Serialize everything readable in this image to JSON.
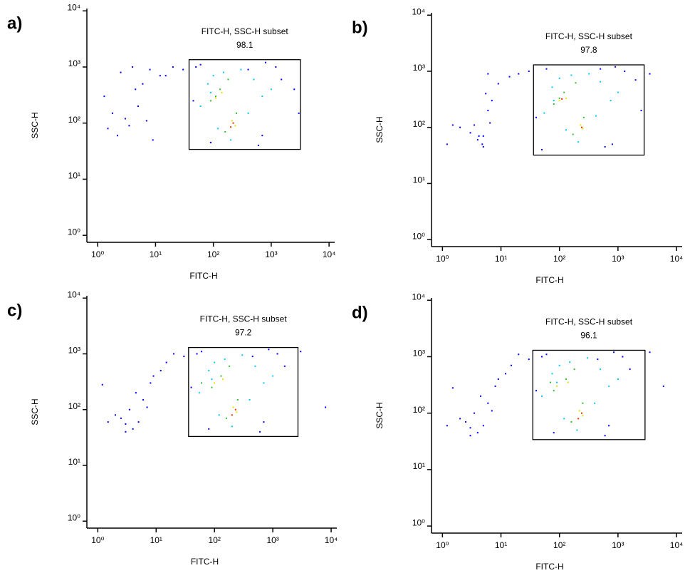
{
  "chart_data": [
    {
      "type": "scatter",
      "panel_label": "a)",
      "title": "FITC-H, SSC-H subset",
      "gate_value": 98.1,
      "xlabel": "FITC-H",
      "ylabel": "SSC-H",
      "log_x": true,
      "log_y": true,
      "xlim": [
        0.65,
        12500
      ],
      "ylim": [
        0.75,
        11000
      ],
      "xticks": [
        {
          "value": 1,
          "label": "10⁰"
        },
        {
          "value": 10,
          "label": "10¹"
        },
        {
          "value": 100,
          "label": "10²"
        },
        {
          "value": 1000,
          "label": "10³"
        },
        {
          "value": 10000,
          "label": "10⁴"
        }
      ],
      "yticks": [
        {
          "value": 1,
          "label": "10⁰"
        },
        {
          "value": 10,
          "label": "10¹"
        },
        {
          "value": 100,
          "label": "10²"
        },
        {
          "value": 1000,
          "label": "10³"
        },
        {
          "value": 10000,
          "label": "10⁴"
        }
      ],
      "gate": {
        "x": [
          38,
          3200
        ],
        "y": [
          34,
          1350
        ]
      },
      "series": [
        {
          "color": "#0000ff",
          "x": [
            1.3,
            1.8,
            2.5,
            3,
            4,
            5,
            2.2,
            6,
            8,
            3.5,
            12,
            20,
            30,
            1.5,
            4.5,
            7,
            9,
            15,
            50,
            60,
            400,
            800,
            1500,
            2500,
            700,
            90,
            45,
            3000,
            1200,
            600
          ],
          "values": [
            300,
            150,
            800,
            120,
            1000,
            200,
            60,
            500,
            900,
            90,
            700,
            1000,
            900,
            80,
            400,
            110,
            50,
            700,
            1000,
            1100,
            900,
            1200,
            600,
            400,
            60,
            45,
            250,
            150,
            1000,
            40
          ]
        },
        {
          "color": "#00c8ff",
          "x": [
            60,
            80,
            100,
            150,
            300,
            500,
            700,
            1000,
            200,
            120,
            90,
            400
          ],
          "values": [
            200,
            500,
            700,
            800,
            900,
            600,
            300,
            400,
            50,
            80,
            350,
            150
          ]
        },
        {
          "color": "#30c030",
          "x": [
            90,
            130,
            180,
            250,
            160,
            110
          ],
          "values": [
            250,
            400,
            600,
            150,
            70,
            300
          ]
        },
        {
          "color": "#e8e000",
          "x": [
            110,
            210,
            240,
            140
          ],
          "values": [
            280,
            110,
            90,
            350
          ]
        },
        {
          "color": "#e03000",
          "x": [
            220,
            200
          ],
          "values": [
            100,
            85
          ]
        }
      ]
    },
    {
      "type": "scatter",
      "panel_label": "b)",
      "title": "FITC-H, SSC-H subset",
      "gate_value": 97.8,
      "xlabel": "FITC-H",
      "ylabel": "SSC-H",
      "log_x": true,
      "log_y": true,
      "xlim": [
        0.65,
        12500
      ],
      "ylim": [
        0.75,
        11000
      ],
      "xticks": [
        {
          "value": 1,
          "label": "10⁰"
        },
        {
          "value": 10,
          "label": "10¹"
        },
        {
          "value": 100,
          "label": "10²"
        },
        {
          "value": 1000,
          "label": "10³"
        },
        {
          "value": 10000,
          "label": "10⁴"
        }
      ],
      "yticks": [
        {
          "value": 1,
          "label": "10⁰"
        },
        {
          "value": 10,
          "label": "10¹"
        },
        {
          "value": 100,
          "label": "10²"
        },
        {
          "value": 1000,
          "label": "10³"
        },
        {
          "value": 10000,
          "label": "10⁴"
        }
      ],
      "gate": {
        "x": [
          36,
          2800
        ],
        "y": [
          32,
          1300
        ]
      },
      "series": [
        {
          "color": "#0000ff",
          "x": [
            1.2,
            2,
            3,
            4,
            5,
            6,
            5.5,
            4.8,
            6.5,
            7,
            5,
            9,
            20,
            30,
            1.5,
            3.5,
            4.2,
            6,
            14,
            60,
            500,
            900,
            2000,
            3500,
            800,
            50,
            40,
            2500,
            1300,
            600
          ],
          "values": [
            50,
            100,
            80,
            60,
            45,
            200,
            400,
            50,
            120,
            300,
            70,
            600,
            900,
            1000,
            110,
            110,
            70,
            900,
            800,
            1100,
            1100,
            1200,
            700,
            900,
            50,
            40,
            150,
            200,
            1000,
            45
          ]
        },
        {
          "color": "#00c8ff",
          "x": [
            55,
            75,
            100,
            160,
            320,
            500,
            750,
            1000,
            210,
            130,
            80,
            420
          ],
          "values": [
            180,
            520,
            750,
            850,
            900,
            650,
            300,
            420,
            55,
            90,
            300,
            160
          ]
        },
        {
          "color": "#30c030",
          "x": [
            80,
            120,
            190,
            260,
            170,
            100
          ],
          "values": [
            260,
            420,
            620,
            150,
            75,
            330
          ]
        },
        {
          "color": "#e8e000",
          "x": [
            100,
            230,
            250,
            130
          ],
          "values": [
            300,
            110,
            95,
            330
          ]
        },
        {
          "color": "#e03000",
          "x": [
            240,
            110
          ],
          "values": [
            100,
            320
          ]
        }
      ]
    },
    {
      "type": "scatter",
      "panel_label": "c)",
      "title": "FITC-H, SSC-H subset",
      "gate_value": 97.2,
      "xlabel": "FITC-H",
      "ylabel": "SSC-H",
      "log_x": true,
      "log_y": true,
      "xlim": [
        0.65,
        12500
      ],
      "ylim": [
        0.75,
        11000
      ],
      "xticks": [
        {
          "value": 1,
          "label": "10⁰"
        },
        {
          "value": 10,
          "label": "10¹"
        },
        {
          "value": 100,
          "label": "10²"
        },
        {
          "value": 1000,
          "label": "10³"
        },
        {
          "value": 10000,
          "label": "10⁴"
        }
      ],
      "yticks": [
        {
          "value": 1,
          "label": "10⁰"
        },
        {
          "value": 10,
          "label": "10¹"
        },
        {
          "value": 100,
          "label": "10²"
        },
        {
          "value": 1000,
          "label": "10³"
        },
        {
          "value": 10000,
          "label": "10⁴"
        }
      ],
      "gate": {
        "x": [
          36,
          2700
        ],
        "y": [
          33,
          1300
        ]
      },
      "series": [
        {
          "color": "#0000ff",
          "x": [
            1.5,
            2,
            3,
            3.5,
            4,
            5,
            4.5,
            6,
            8,
            3,
            12,
            20,
            30,
            1.2,
            2.5,
            7,
            9,
            15,
            50,
            60,
            450,
            850,
            1600,
            3000,
            700,
            80,
            40,
            8000,
            1200,
            600
          ],
          "values": [
            60,
            80,
            55,
            100,
            45,
            60,
            200,
            150,
            300,
            40,
            500,
            1000,
            900,
            280,
            70,
            110,
            400,
            700,
            1000,
            1100,
            900,
            1200,
            600,
            1100,
            60,
            45,
            250,
            110,
            1000,
            40
          ]
        },
        {
          "color": "#00c8ff",
          "x": [
            55,
            80,
            100,
            150,
            300,
            500,
            700,
            1000,
            200,
            120,
            90,
            400
          ],
          "values": [
            200,
            500,
            700,
            800,
            950,
            600,
            300,
            400,
            50,
            80,
            350,
            150
          ]
        },
        {
          "color": "#30c030",
          "x": [
            90,
            130,
            180,
            250,
            160,
            60
          ],
          "values": [
            250,
            400,
            600,
            150,
            70,
            300
          ]
        },
        {
          "color": "#e8e000",
          "x": [
            100,
            210,
            240,
            140
          ],
          "values": [
            300,
            110,
            90,
            350
          ]
        },
        {
          "color": "#e03000",
          "x": [
            230,
            200
          ],
          "values": [
            100,
            80
          ]
        }
      ]
    },
    {
      "type": "scatter",
      "panel_label": "d)",
      "title": "FITC-H, SSC-H subset",
      "gate_value": 96.1,
      "xlabel": "FITC-H",
      "ylabel": "SSC-H",
      "log_x": true,
      "log_y": true,
      "xlim": [
        0.65,
        12500
      ],
      "ylim": [
        0.75,
        11000
      ],
      "xticks": [
        {
          "value": 1,
          "label": "10⁰"
        },
        {
          "value": 10,
          "label": "10¹"
        },
        {
          "value": 100,
          "label": "10²"
        },
        {
          "value": 1000,
          "label": "10³"
        },
        {
          "value": 10000,
          "label": "10⁴"
        }
      ],
      "yticks": [
        {
          "value": 1,
          "label": "10⁰"
        },
        {
          "value": 10,
          "label": "10¹"
        },
        {
          "value": 100,
          "label": "10²"
        },
        {
          "value": 1000,
          "label": "10³"
        },
        {
          "value": 10000,
          "label": "10⁴"
        }
      ],
      "gate": {
        "x": [
          35,
          2900
        ],
        "y": [
          34,
          1300
        ]
      },
      "series": [
        {
          "color": "#0000ff",
          "x": [
            1.2,
            2,
            3,
            3.5,
            4,
            5,
            4.5,
            6,
            8,
            3,
            12,
            20,
            30,
            1.5,
            2.5,
            7,
            9,
            15,
            50,
            60,
            450,
            850,
            1600,
            3500,
            700,
            80,
            40,
            6000,
            1200,
            600
          ],
          "values": [
            60,
            80,
            55,
            100,
            45,
            60,
            200,
            150,
            300,
            40,
            500,
            1100,
            900,
            280,
            70,
            110,
            400,
            700,
            1000,
            1100,
            900,
            1200,
            600,
            1200,
            60,
            45,
            250,
            300,
            1000,
            40
          ]
        },
        {
          "color": "#00c8ff",
          "x": [
            50,
            75,
            100,
            150,
            300,
            500,
            700,
            1000,
            200,
            120,
            90,
            400
          ],
          "values": [
            200,
            500,
            700,
            800,
            950,
            600,
            300,
            400,
            50,
            80,
            350,
            150
          ]
        },
        {
          "color": "#30c030",
          "x": [
            80,
            130,
            180,
            250,
            160,
            70
          ],
          "values": [
            250,
            400,
            600,
            150,
            70,
            350
          ]
        },
        {
          "color": "#e8e000",
          "x": [
            90,
            220,
            250,
            140
          ],
          "values": [
            300,
            110,
            90,
            350
          ]
        },
        {
          "color": "#e03000",
          "x": [
            240,
            210
          ],
          "values": [
            100,
            80
          ]
        }
      ]
    }
  ]
}
